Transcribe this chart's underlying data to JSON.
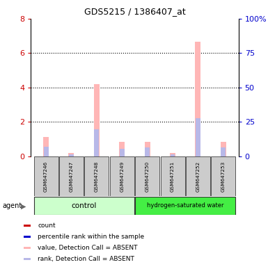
{
  "title": "GDS5215 / 1386407_at",
  "samples": [
    "GSM647246",
    "GSM647247",
    "GSM647248",
    "GSM647249",
    "GSM647250",
    "GSM647251",
    "GSM647252",
    "GSM647253"
  ],
  "value_pink": [
    1.1,
    0.2,
    4.2,
    0.85,
    0.85,
    0.2,
    6.65,
    0.85
  ],
  "rank_lightblue": [
    0.55,
    0.1,
    1.55,
    0.45,
    0.5,
    0.1,
    2.2,
    0.5
  ],
  "ylim_left": [
    0,
    8
  ],
  "ylim_right": [
    0,
    100
  ],
  "yticks_left": [
    0,
    2,
    4,
    6,
    8
  ],
  "yticks_right": [
    0,
    25,
    50,
    75,
    100
  ],
  "yticklabels_right": [
    "0",
    "25",
    "50",
    "75",
    "100%"
  ],
  "grid_lines": [
    2,
    4,
    6
  ],
  "bar_color_pink": "#ffb6b6",
  "bar_color_blue": "#b8b8e8",
  "legend_labels": [
    "count",
    "percentile rank within the sample",
    "value, Detection Call = ABSENT",
    "rank, Detection Call = ABSENT"
  ],
  "legend_colors": [
    "#cc0000",
    "#0000cc",
    "#ffb6b6",
    "#b8b8e8"
  ],
  "left_tick_color": "#cc0000",
  "right_tick_color": "#0000cc",
  "title_fontsize": 9,
  "agent_label": "agent",
  "sample_box_color": "#cccccc",
  "ctrl_color": "#ccffcc",
  "hyd_color": "#44ee44",
  "group_label_ctrl": "control",
  "group_label_hyd": "hydrogen-saturated water"
}
